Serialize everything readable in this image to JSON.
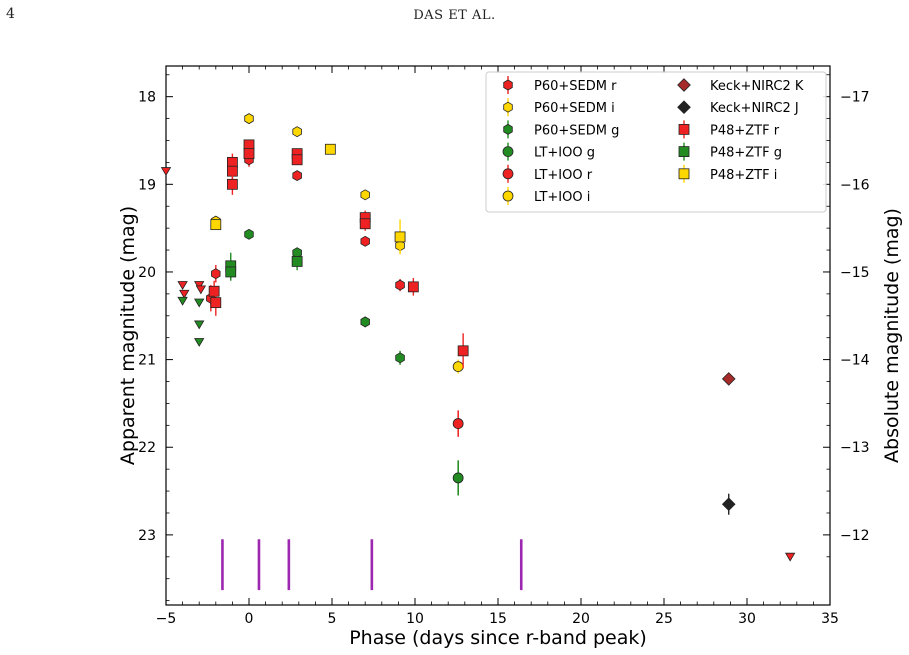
{
  "page": {
    "number": "4",
    "running_head": "DAS ET AL."
  },
  "chart_data": {
    "type": "scatter",
    "xlabel": "Phase (days since r-band peak)",
    "ylabel": "Apparent magnitude (mag)",
    "ylabel_right": "Absolute magnitude (mag)",
    "xlim": [
      -5,
      35
    ],
    "ylim": [
      23.8,
      17.65
    ],
    "y_inverted": true,
    "xticks": [
      -5,
      0,
      5,
      10,
      15,
      20,
      25,
      30,
      35
    ],
    "yticks": [
      18,
      19,
      20,
      21,
      22,
      23
    ],
    "yticks_right": [
      -17,
      -16,
      -15,
      -14,
      -13,
      -12
    ],
    "abs_mag_offset": -35.0,
    "grid": false,
    "legend_position": "top-right",
    "colors": {
      "r": "#ee2222",
      "g": "#228b22",
      "i": "#ffd700",
      "k": "#a52a2a",
      "j": "#222222",
      "lines": "#9c27b0"
    },
    "series": [
      {
        "name": "P60+SEDM r",
        "marker": "hexagon",
        "color": "#ee2222",
        "points": [
          [
            -2.3,
            20.3
          ],
          [
            -2.0,
            20.02
          ],
          [
            0.0,
            18.72
          ],
          [
            2.9,
            18.9
          ],
          [
            7.0,
            19.65
          ],
          [
            9.1,
            20.15
          ],
          [
            12.6,
            21.73
          ]
        ],
        "err": [
          0.15,
          0.1,
          0.08,
          0.05,
          0.05,
          0.07,
          0.15
        ]
      },
      {
        "name": "P60+SEDM i",
        "marker": "hexagon",
        "color": "#ffd700",
        "points": [
          [
            -2.0,
            19.42
          ],
          [
            0.0,
            18.25
          ],
          [
            2.9,
            18.4
          ],
          [
            7.0,
            19.12
          ],
          [
            9.1,
            19.7
          ]
        ],
        "err": [
          0.05,
          0.05,
          0.05,
          0.05,
          0.08
        ]
      },
      {
        "name": "P60+SEDM g",
        "marker": "hexagon",
        "color": "#228b22",
        "points": [
          [
            0.0,
            19.57
          ],
          [
            2.9,
            19.78
          ],
          [
            7.0,
            20.57
          ],
          [
            9.1,
            20.98
          ],
          [
            12.6,
            22.35
          ]
        ],
        "err": [
          0.04,
          0.05,
          0.06,
          0.08,
          0.2
        ]
      },
      {
        "name": "LT+IOO g",
        "marker": "circle",
        "color": "#228b22",
        "points": [
          [
            12.6,
            22.35
          ]
        ],
        "err": [
          0.2
        ]
      },
      {
        "name": "LT+IOO r",
        "marker": "circle",
        "color": "#ee2222",
        "points": [
          [
            12.6,
            21.73
          ]
        ],
        "err": [
          0.15
        ]
      },
      {
        "name": "LT+IOO i",
        "marker": "circle",
        "color": "#ffd700",
        "points": [
          [
            12.6,
            21.08
          ]
        ],
        "err": [
          0.08
        ]
      },
      {
        "name": "Keck+NIRC2 K",
        "marker": "diamond",
        "color": "#a52a2a",
        "points": [
          [
            28.9,
            21.22
          ]
        ],
        "err": [
          0.05
        ]
      },
      {
        "name": "Keck+NIRC2 J",
        "marker": "diamond",
        "color": "#222222",
        "points": [
          [
            28.9,
            22.65
          ]
        ],
        "err": [
          0.12
        ]
      },
      {
        "name": "P48+ZTF r",
        "marker": "square",
        "color": "#ee2222",
        "points": [
          [
            -2.1,
            20.22
          ],
          [
            -2.0,
            20.35
          ],
          [
            -1.0,
            18.75
          ],
          [
            -1.0,
            18.85
          ],
          [
            -1.0,
            19.0
          ],
          [
            0.0,
            18.55
          ],
          [
            0.0,
            18.65
          ],
          [
            2.9,
            18.65
          ],
          [
            2.9,
            18.72
          ],
          [
            7.0,
            19.38
          ],
          [
            7.0,
            19.45
          ],
          [
            9.9,
            20.17
          ],
          [
            12.9,
            20.9
          ]
        ],
        "err": [
          0.12,
          0.15,
          0.1,
          0.1,
          0.12,
          0.06,
          0.06,
          0.06,
          0.06,
          0.08,
          0.08,
          0.1,
          0.2
        ]
      },
      {
        "name": "P48+ZTF g",
        "marker": "square",
        "color": "#228b22",
        "points": [
          [
            -1.1,
            19.93
          ],
          [
            -1.1,
            20.0
          ],
          [
            2.9,
            19.88
          ]
        ],
        "err": [
          0.15,
          0.1,
          0.1
        ]
      },
      {
        "name": "P48+ZTF i",
        "marker": "square",
        "color": "#ffd700",
        "points": [
          [
            -2.0,
            19.46
          ],
          [
            4.9,
            18.6
          ],
          [
            9.1,
            19.6
          ]
        ],
        "err": [
          0.05,
          0.05,
          0.2
        ]
      },
      {
        "name": "r upper limits",
        "marker": "triangle-down",
        "color": "#ee2222",
        "points": [
          [
            -5.0,
            18.85
          ],
          [
            -4.0,
            20.15
          ],
          [
            -3.9,
            20.25
          ],
          [
            -3.0,
            20.15
          ],
          [
            -2.9,
            20.2
          ],
          [
            32.6,
            23.25
          ]
        ]
      },
      {
        "name": "g upper limits",
        "marker": "triangle-down",
        "color": "#228b22",
        "points": [
          [
            -4.0,
            20.33
          ],
          [
            -3.0,
            20.35
          ],
          [
            -3.0,
            20.6
          ],
          [
            -3.0,
            20.8
          ]
        ]
      }
    ],
    "vertical_lines": [
      -1.6,
      0.6,
      2.4,
      7.4,
      16.4
    ],
    "vertical_line_range": [
      23.05,
      23.63
    ]
  }
}
